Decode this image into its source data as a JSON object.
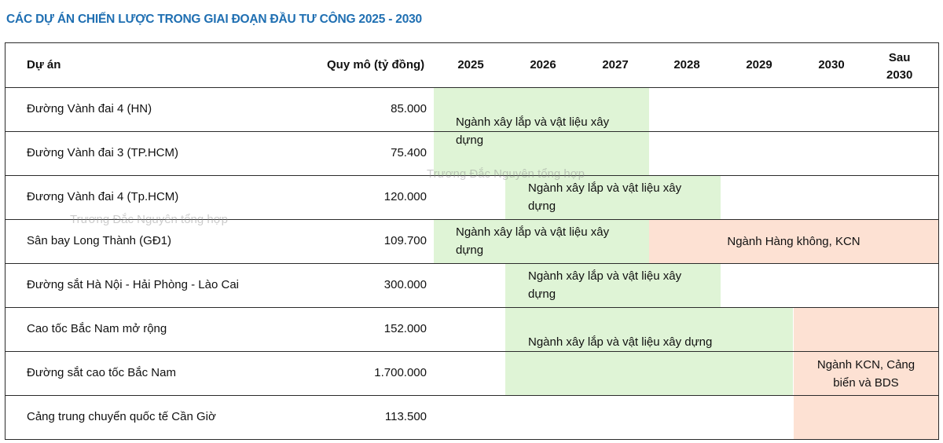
{
  "title": "CÁC DỰ ÁN CHIẾN LƯỢC TRONG GIAI ĐOẠN ĐẦU TƯ CÔNG 2025 - 2030",
  "header": {
    "project": "Dự án",
    "scale": "Quy mô (tỷ đồng)",
    "years": [
      "2025",
      "2026",
      "2027",
      "2028",
      "2029",
      "2030"
    ],
    "after_line1": "Sau",
    "after_line2": "2030"
  },
  "rows": [
    {
      "project": "Đường Vành đai 4 (HN)",
      "scale": "85.000"
    },
    {
      "project": "Đường Vành đai 3 (TP.HCM)",
      "scale": "75.400"
    },
    {
      "project": "Đương Vành đai 4 (Tp.HCM)",
      "scale": "120.000"
    },
    {
      "project": "Sân bay Long Thành (GĐ1)",
      "scale": "109.700"
    },
    {
      "project": "Đường sắt Hà Nội - Hải Phòng - Lào Cai",
      "scale": "300.000"
    },
    {
      "project": "Cao tốc Bắc Nam mở rộng",
      "scale": "152.000"
    },
    {
      "project": "Đường sắt cao tốc Bắc Nam",
      "scale": "1.700.000"
    },
    {
      "project": "Cảng trung chuyển quốc tế Cần Giờ",
      "scale": "113.500"
    }
  ],
  "bands": {
    "b1_l1": "Ngành xây lắp và vật liệu xây",
    "b1_l2": "dựng",
    "b2_l1": "Ngành xây lắp và vật liệu xây",
    "b2_l2": "dựng",
    "b3_l1": "Ngành xây lắp và vật liệu xây",
    "b3_l2": "dựng",
    "b4": "Ngành Hàng không, KCN",
    "b5_l1": "Ngành xây lắp và vật liệu xây",
    "b5_l2": "dựng",
    "b6": "Ngành xây lắp và vật liệu xây dựng",
    "b7_l1": "Ngành KCN, Cảng",
    "b7_l2": "biển và BDS"
  },
  "watermark": "Trương Đắc Nguyên tổng hợp",
  "colors": {
    "title": "#1f6fb2",
    "green": "#dff4d6",
    "peach": "#fde1d3"
  }
}
